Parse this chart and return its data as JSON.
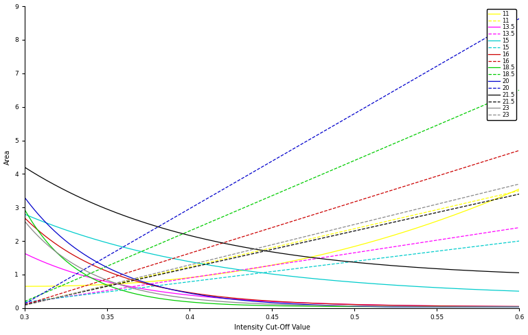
{
  "xlabel": "Intensity Cut-Off Value",
  "ylabel": "Area",
  "xlim": [
    0.3,
    0.6
  ],
  "ylim": [
    0,
    9
  ],
  "xticks": [
    0.3,
    0.35,
    0.4,
    0.45,
    0.5,
    0.55,
    0.6
  ],
  "yticks": [
    0,
    1,
    2,
    3,
    4,
    5,
    6,
    7,
    8,
    9
  ],
  "figsize": [
    7.69,
    4.88
  ],
  "dpi": 100,
  "legend_labels": [
    "11",
    "11",
    "13.5",
    "13.5",
    "15",
    "15",
    "16",
    "16",
    "18.5",
    "18.5",
    "20",
    "20",
    "21.5",
    "21.5",
    "23",
    "23"
  ],
  "legend_styles": [
    "solid",
    "dashed",
    "solid",
    "dashed",
    "solid",
    "dashed",
    "solid",
    "dashed",
    "solid",
    "dashed",
    "solid",
    "dashed",
    "solid",
    "dashed",
    "solid",
    "dashed"
  ],
  "legend_colors": [
    "#ffff00",
    "#ffff00",
    "#ff00ff",
    "#ff00ff",
    "#00cccc",
    "#00cccc",
    "#cc0000",
    "#cc0000",
    "#00cc00",
    "#00cc00",
    "#0000cc",
    "#0000cc",
    "#000000",
    "#000000",
    "#888888",
    "#888888"
  ]
}
